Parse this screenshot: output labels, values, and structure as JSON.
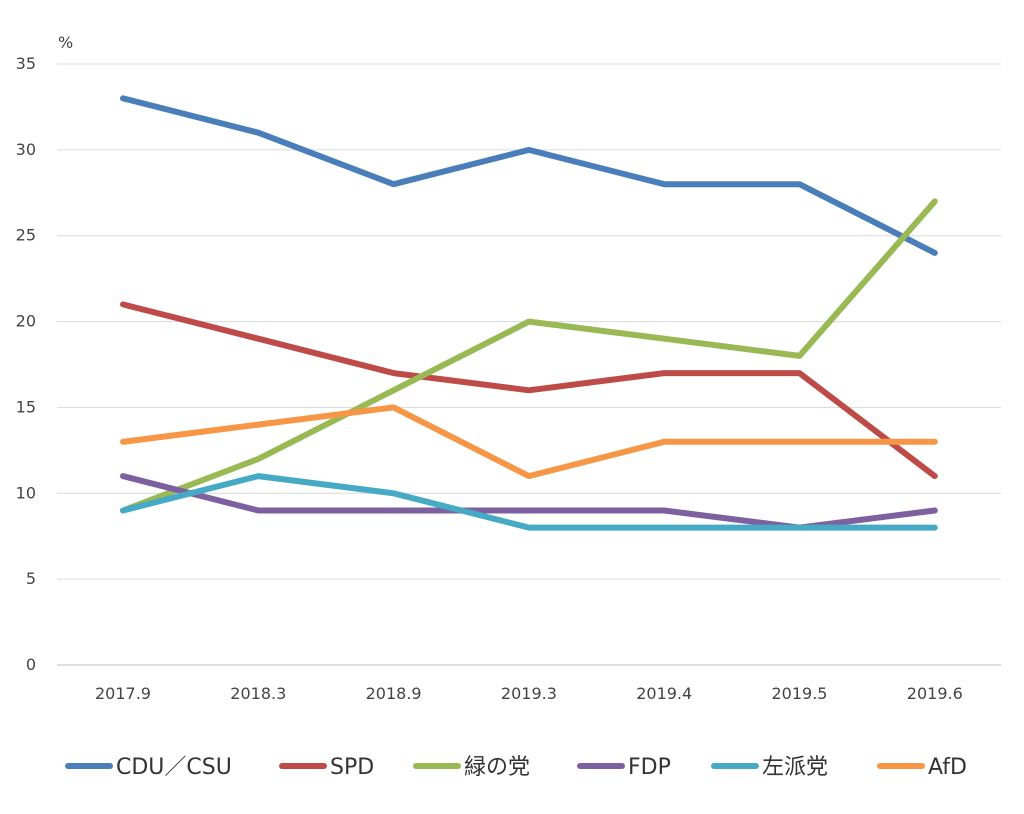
{
  "chart_data": {
    "type": "line",
    "unit_label": "%",
    "categories": [
      "2017.9",
      "2018.3",
      "2018.9",
      "2019.3",
      "2019.4",
      "2019.5",
      "2019.6"
    ],
    "ylim": [
      0,
      35
    ],
    "yticks": [
      0,
      5,
      10,
      15,
      20,
      25,
      30,
      35
    ],
    "grid": true,
    "legend_position": "bottom",
    "series": [
      {
        "name": "CDU／CSU",
        "color": "#4a7ebb",
        "values": [
          33,
          31,
          28,
          30,
          28,
          28,
          24
        ]
      },
      {
        "name": "SPD",
        "color": "#be4b48",
        "values": [
          21,
          19,
          17,
          16,
          17,
          17,
          11
        ]
      },
      {
        "name": "緑の党",
        "color": "#98b954",
        "values": [
          9,
          12,
          16,
          20,
          19,
          18,
          27
        ]
      },
      {
        "name": "FDP",
        "color": "#7d60a0",
        "values": [
          11,
          9,
          9,
          9,
          9,
          8,
          9
        ]
      },
      {
        "name": "左派党",
        "color": "#46aac5",
        "values": [
          9,
          11,
          10,
          8,
          8,
          8,
          8
        ]
      },
      {
        "name": "AfD",
        "color": "#f79646",
        "values": [
          13,
          14,
          15,
          11,
          13,
          13,
          13
        ]
      }
    ]
  }
}
